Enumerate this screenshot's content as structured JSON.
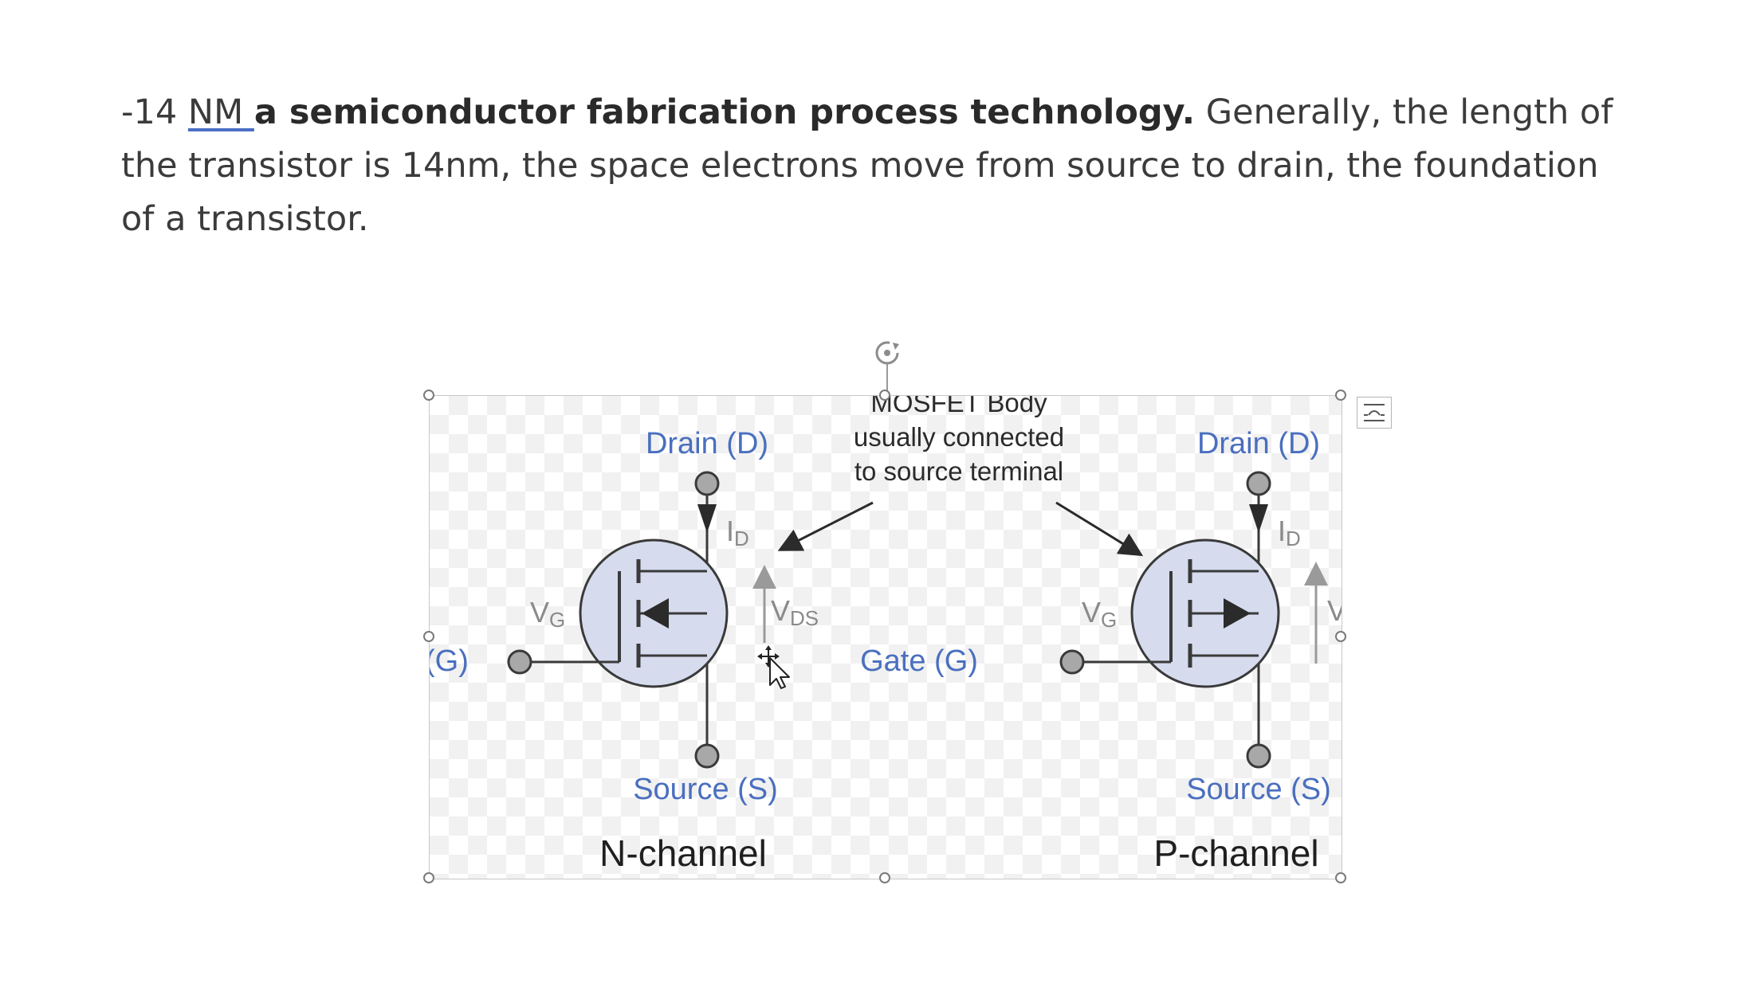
{
  "paragraph": {
    "prefix": "-14 ",
    "link": "NM ",
    "bold": " a semiconductor fabrication process technology.",
    "rest": " Generally, the length of the transistor is 14nm, the space electrons move from source to drain, the foundation of a transistor."
  },
  "figure": {
    "note": [
      "MOSFET Body",
      "usually connected",
      "to source terminal"
    ],
    "n_channel": {
      "title": "N-channel",
      "drain": "Drain (D)",
      "source": "Source (S)",
      "gate": "(G)",
      "id_label": "I",
      "id_sub": "D",
      "vg_label": "V",
      "vg_sub": "G",
      "vds_label": "V",
      "vds_sub": "DS"
    },
    "p_channel": {
      "title": "P-channel",
      "drain": "Drain (D)",
      "source": "Source (S)",
      "gate": "Gate (G)",
      "id_label": "I",
      "id_sub": "D",
      "vg_label": "V",
      "vg_sub": "G",
      "vds_label": "V"
    },
    "colors": {
      "label_blue": "#4a6fbf",
      "body_fill": "#d6dcee",
      "line": "#3a3a3a",
      "terminal_fill": "#a8a8a8",
      "arrow_grey": "#9a9a9a"
    }
  },
  "icons": {
    "rotate": "rotate-handle-icon",
    "layout_options": "layout-options-icon",
    "cursor": "move-cursor-icon"
  }
}
